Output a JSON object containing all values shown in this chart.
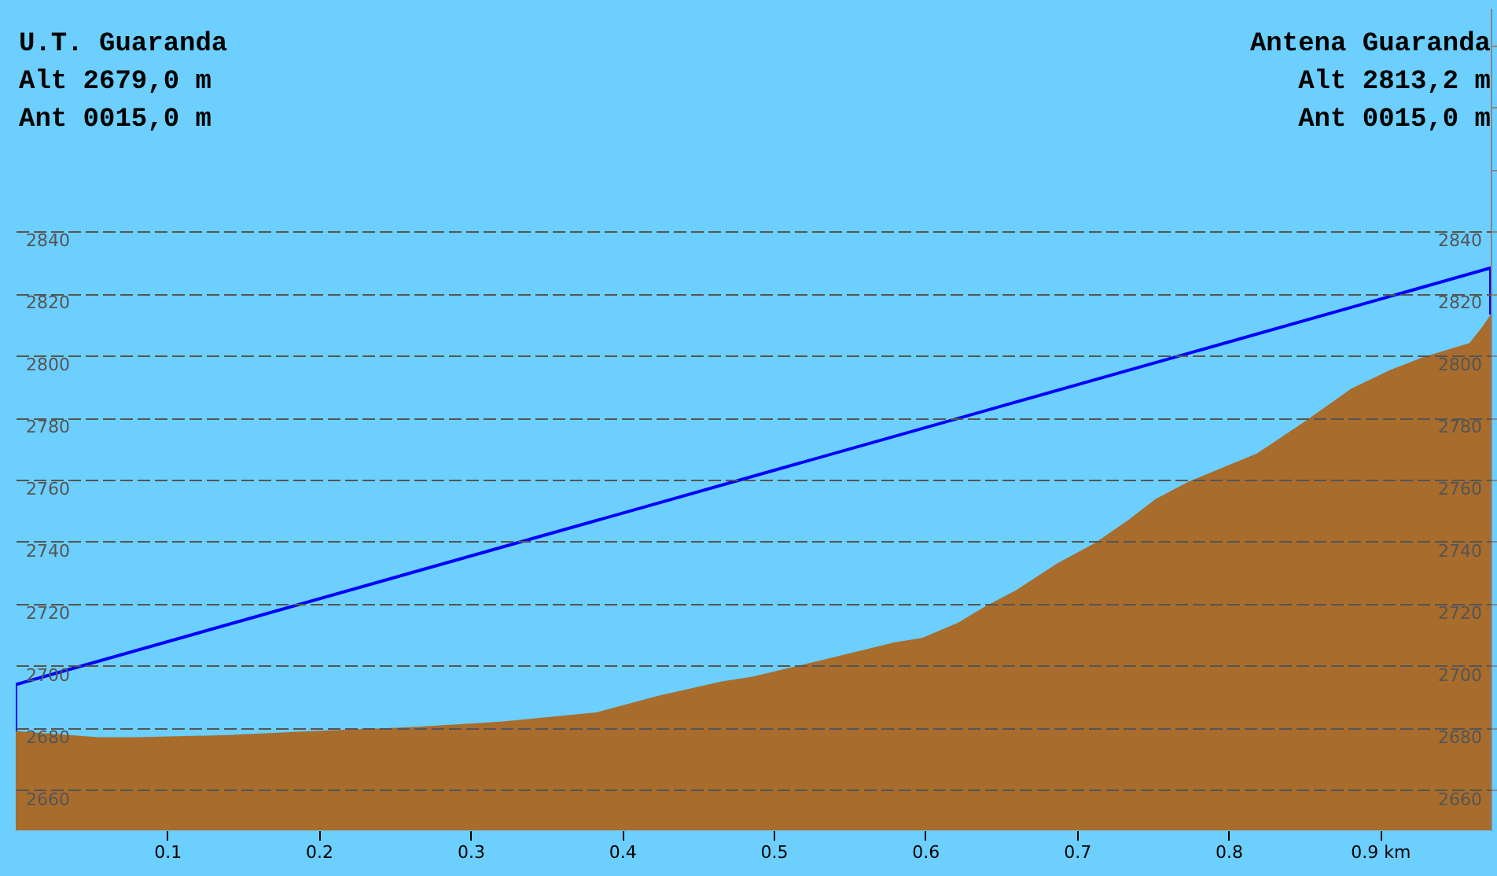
{
  "chart_data": {
    "type": "area",
    "annotations": [
      "U.T. Guaranda",
      "Alt 2679,0 m",
      "Ant 0015,0 m",
      "Antena Guaranda",
      "Alt 2813,2 m",
      "Ant 0015,0 m"
    ],
    "series": [
      {
        "color": "#a86c2c",
        "x": [
          0,
          0.055,
          0.079,
          0.14,
          0.195,
          0.263,
          0.32,
          0.383,
          0.424,
          0.466,
          0.486,
          0.538,
          0.58,
          0.598,
          0.622,
          0.639,
          0.66,
          0.687,
          0.712,
          0.734,
          0.752,
          0.774,
          0.819,
          0.85,
          0.881,
          0.907,
          0.928,
          0.959,
          0.968,
          0.973
        ],
        "values": [
          2679,
          2677,
          2677,
          2677.7,
          2679,
          2680.3,
          2682,
          2685,
          2690.4,
          2695,
          2696.5,
          2702.6,
          2707.6,
          2709,
          2714,
          2719,
          2724.4,
          2733,
          2739.6,
          2747,
          2753.8,
          2759.4,
          2768.5,
          2778.6,
          2789.3,
          2795.4,
          2799.4,
          2804,
          2809.6,
          2813.2
        ]
      },
      {
        "type": "line",
        "color": "#0000ff",
        "x": [
          0,
          0,
          0.973,
          0.973
        ],
        "values": [
          2679,
          2694,
          2828.2,
          2813.2
        ]
      }
    ],
    "xlim": [
      0,
      0.973
    ],
    "xticks": [
      0.1,
      0.2,
      0.3,
      0.4,
      0.5,
      0.6,
      0.7,
      0.8,
      {
        "value": 0.9,
        "label": "0.9 km"
      }
    ],
    "ylim": [
      2647,
      2912
    ],
    "yticks": [
      2660,
      2680,
      2700,
      2720,
      2740,
      2760,
      2780,
      2800,
      2820,
      2840
    ],
    "y2lim": [
      2647,
      2912
    ],
    "y2ticks": [
      2660,
      2680,
      2700,
      2720,
      2740,
      2760,
      2780,
      2800,
      2820,
      2840
    ],
    "grid": "y",
    "line_style": "solid"
  }
}
